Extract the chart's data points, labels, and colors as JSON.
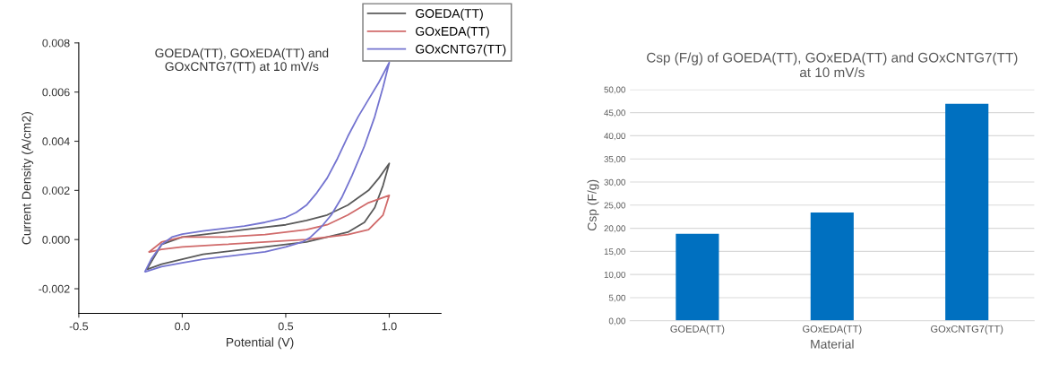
{
  "chart_data": [
    {
      "type": "line",
      "title": "GOEDA(TT), GOxEDA(TT) and\nGOxCNTG7(TT) at 10 mV/s",
      "xlabel": "Potential (V)",
      "ylabel": "Current Density (A/cm2)",
      "xlim": [
        -0.5,
        1.25
      ],
      "ylim": [
        -0.003,
        0.008
      ],
      "xticks": [
        {
          "value": -0.5,
          "label": "-0.5"
        },
        {
          "value": 0,
          "label": "0.0"
        },
        {
          "value": 0.5,
          "label": "0.5"
        },
        {
          "value": 1,
          "label": "1.0"
        }
      ],
      "yticks": [
        {
          "value": -0.002,
          "label": "-0.002"
        },
        {
          "value": 0,
          "label": "0.000"
        },
        {
          "value": 0.002,
          "label": "0.002"
        },
        {
          "value": 0.004,
          "label": "0.004"
        },
        {
          "value": 0.006,
          "label": "0.006"
        },
        {
          "value": 0.008,
          "label": "0.008"
        }
      ],
      "grid": false,
      "legend": "top right",
      "marker": "none",
      "line_style": "solid",
      "series": [
        {
          "name": "GOEDA(TT)",
          "color": "#5a5a5a",
          "x": [
            -0.17,
            -0.1,
            0,
            0.1,
            0.2,
            0.3,
            0.4,
            0.5,
            0.6,
            0.7,
            0.8,
            0.9,
            0.95,
            1.0,
            0.97,
            0.93,
            0.88,
            0.8,
            0.7,
            0.6,
            0.5,
            0.3,
            0.1,
            0,
            -0.1,
            -0.165
          ],
          "values": [
            -0.0012,
            -0.0002,
            0.0001,
            0.0002,
            0.0003,
            0.0004,
            0.0005,
            0.0006,
            0.00078,
            0.001,
            0.0014,
            0.002,
            0.0025,
            0.0031,
            0.0022,
            0.0013,
            0.0007,
            0.0003,
            0.0001,
            -0.0001,
            -0.0002,
            -0.0004,
            -0.0006,
            -0.0008,
            -0.001,
            -0.0012
          ]
        },
        {
          "name": "GOxEDA(TT)",
          "color": "#d06a6a",
          "x": [
            -0.16,
            -0.1,
            0,
            0.2,
            0.4,
            0.6,
            0.7,
            0.8,
            0.9,
            1.0,
            0.97,
            0.9,
            0.8,
            0.6,
            0.4,
            0.2,
            0,
            -0.1,
            -0.155
          ],
          "values": [
            -0.0005,
            -0.0001,
            0.0001,
            0.0001,
            0.0002,
            0.0004,
            0.0006,
            0.001,
            0.0015,
            0.0018,
            0.001,
            0.0004,
            0.0002,
            0.0,
            -0.0001,
            -0.0002,
            -0.0003,
            -0.0004,
            -0.0005
          ]
        },
        {
          "name": "GOxCNTG7(TT)",
          "color": "#7474d0",
          "x": [
            -0.18,
            -0.15,
            -0.1,
            -0.05,
            0,
            0.1,
            0.2,
            0.3,
            0.4,
            0.5,
            0.55,
            0.6,
            0.65,
            0.7,
            0.75,
            0.8,
            0.85,
            0.9,
            0.95,
            1.0,
            0.97,
            0.93,
            0.88,
            0.82,
            0.77,
            0.72,
            0.67,
            0.62,
            0.58,
            0.5,
            0.4,
            0.3,
            0.2,
            0.1,
            0,
            -0.1,
            -0.175
          ],
          "values": [
            -0.0013,
            -0.0008,
            -0.0002,
            0.0001,
            0.00022,
            0.00035,
            0.00045,
            0.00055,
            0.0007,
            0.0009,
            0.0011,
            0.0014,
            0.0019,
            0.0025,
            0.0033,
            0.0042,
            0.005,
            0.0057,
            0.0064,
            0.0072,
            0.0062,
            0.005,
            0.0038,
            0.0026,
            0.0017,
            0.001,
            0.0005,
            0.0001,
            -0.0001,
            -0.0003,
            -0.0005,
            -0.0006,
            -0.0007,
            -0.0008,
            -0.00095,
            -0.0011,
            -0.0013
          ]
        }
      ]
    },
    {
      "type": "bar",
      "title": "Csp (F/g) of GOEDA(TT), GOxEDA(TT) and GOxCNTG7(TT)\nat 10 mV/s",
      "xlabel": "Material",
      "ylabel": "Csp (F/g)",
      "categories": [
        "GOEDA(TT)",
        "GOxEDA(TT)",
        "GOxCNTG7(TT)"
      ],
      "values": [
        18.8,
        23.4,
        46.9
      ],
      "color": "#0070c0",
      "ylim": [
        0,
        50
      ],
      "yticks": [
        {
          "value": 0,
          "label": "0,00"
        },
        {
          "value": 5,
          "label": "5,00"
        },
        {
          "value": 10,
          "label": "10,00"
        },
        {
          "value": 15,
          "label": "15,00"
        },
        {
          "value": 20,
          "label": "20,00"
        },
        {
          "value": 25,
          "label": "25,00"
        },
        {
          "value": 30,
          "label": "30,00"
        },
        {
          "value": 35,
          "label": "35,00"
        },
        {
          "value": 40,
          "label": "40,00"
        },
        {
          "value": 45,
          "label": "45,00"
        },
        {
          "value": 50,
          "label": "50,00"
        }
      ],
      "grid": "y"
    }
  ]
}
